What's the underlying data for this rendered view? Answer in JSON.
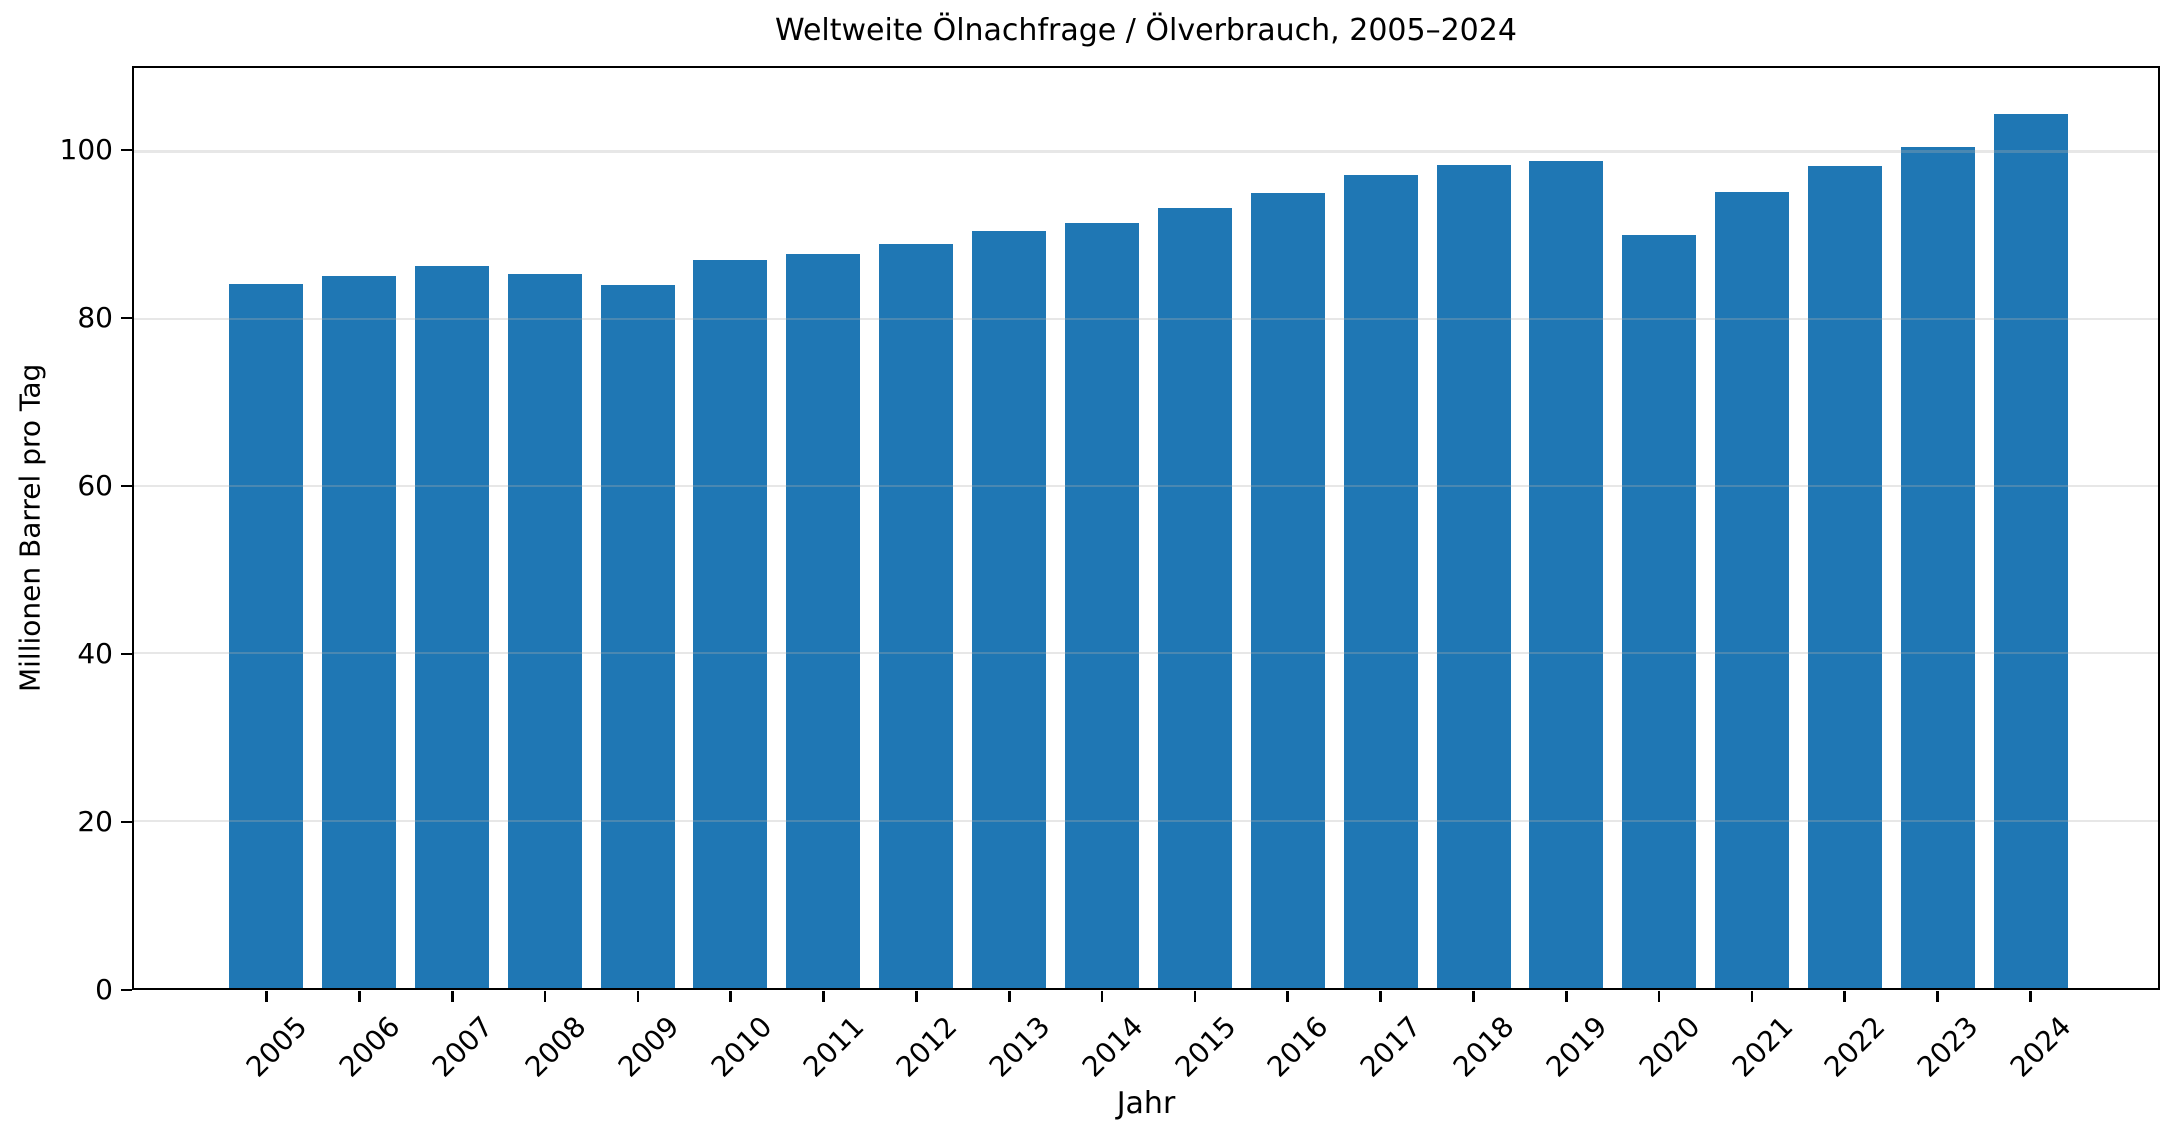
{
  "chart_data": {
    "type": "bar",
    "title": "Weltweite Ölnachfrage / Ölverbrauch, 2005–2024",
    "xlabel": "Jahr",
    "ylabel": "Millionen Barrel pro Tag",
    "categories": [
      "2005",
      "2006",
      "2007",
      "2008",
      "2009",
      "2010",
      "2011",
      "2012",
      "2013",
      "2014",
      "2015",
      "2016",
      "2017",
      "2018",
      "2019",
      "2020",
      "2021",
      "2022",
      "2023",
      "2024"
    ],
    "values": [
      84.2,
      85.1,
      86.3,
      85.4,
      84.0,
      87.0,
      87.8,
      89.0,
      90.5,
      91.5,
      93.3,
      95.0,
      97.2,
      98.4,
      98.9,
      90.0,
      95.2,
      98.3,
      100.6,
      104.5
    ],
    "ylim": [
      0,
      110
    ],
    "yticks": [
      0,
      20,
      40,
      60,
      80,
      100
    ],
    "x_tick_rotation_deg": 45,
    "bar_color": "#1f77b4",
    "background_color": "#ffffff",
    "spine_color": "#000000",
    "grid": "horizontal-only",
    "grid_color": "#b0b0b0",
    "grid_alpha": 0.3,
    "grid_above_bars": true,
    "legend": "none"
  }
}
